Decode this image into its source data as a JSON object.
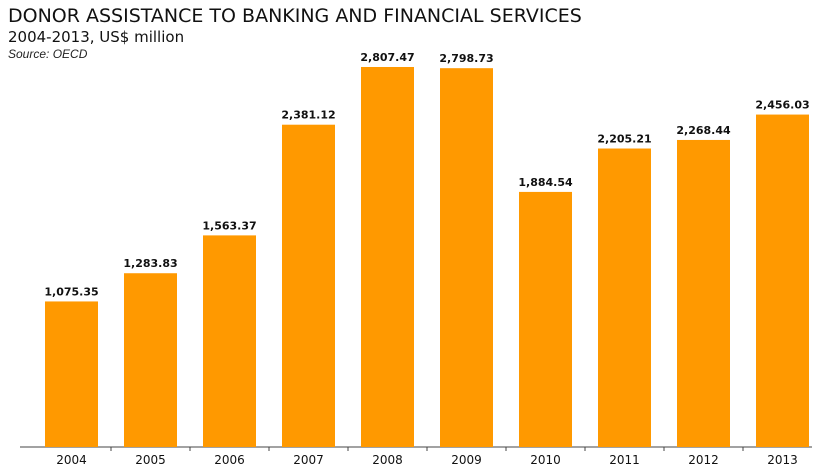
{
  "header": {
    "title": "DONOR ASSISTANCE TO BANKING AND FINANCIAL SERVICES",
    "subtitle": "2004-2013, US$ million",
    "source": "Source: OECD"
  },
  "colors": {
    "bar": "#FF9900",
    "axis": "#444444"
  },
  "chart_data": {
    "type": "bar",
    "title": "DONOR ASSISTANCE TO BANKING AND FINANCIAL SERVICES",
    "subtitle": "2004-2013, US$ million",
    "xlabel": "",
    "ylabel": "",
    "categories": [
      "2004",
      "2005",
      "2006",
      "2007",
      "2008",
      "2009",
      "2010",
      "2011",
      "2012",
      "2013"
    ],
    "values": [
      1075.35,
      1283.83,
      1563.37,
      2381.12,
      2807.47,
      2798.73,
      1884.54,
      2205.21,
      2268.44,
      2456.03
    ],
    "value_labels": [
      "1,075.35",
      "1,283.83",
      "1,563.37",
      "2,381.12",
      "2,807.47",
      "2,798.73",
      "1,884.54",
      "2,205.21",
      "2,268.44",
      "2,456.03"
    ],
    "ylim": [
      0,
      2880
    ],
    "grid": false,
    "legend": "none"
  }
}
